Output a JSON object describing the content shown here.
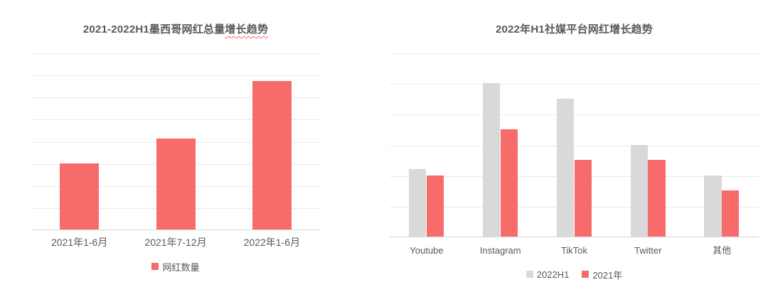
{
  "colors": {
    "red": "#F76B6B",
    "gray": "#D9D9D9",
    "text": "#595959",
    "gridline": "#E9E9E9",
    "axisline": "#D8D8D8",
    "background": "#FFFFFF"
  },
  "chart_data": [
    {
      "type": "bar",
      "title": "2021-2022H1墨西哥网红总量增长趋势",
      "title_wavy_underline_part": "增长趋势",
      "categories": [
        "2021年1-6月",
        "2021年7-12月",
        "2022年1-6月"
      ],
      "series": [
        {
          "name": "网红数量",
          "color_key": "red",
          "values": [
            3.0,
            4.1,
            6.7
          ]
        }
      ],
      "ylim": [
        0,
        8
      ],
      "gridline_intervals": 8,
      "yticks_visible": false,
      "grid": true,
      "legend_position": "bottom",
      "value_note": "values in gridline units; no y-axis tick labels shown"
    },
    {
      "type": "bar",
      "title": "2022年H1社媒平台网红增长趋势",
      "title_wavy_underline_part": "",
      "categories": [
        "Youtube",
        "Instagram",
        "TikTok",
        "Twitter",
        "其他"
      ],
      "series": [
        {
          "name": "2022H1",
          "color_key": "gray",
          "values": [
            2.2,
            5.0,
            4.5,
            3.0,
            2.0
          ]
        },
        {
          "name": "2021年",
          "color_key": "red",
          "values": [
            2.0,
            3.5,
            2.5,
            2.5,
            1.5
          ]
        }
      ],
      "ylim": [
        0,
        6
      ],
      "gridline_intervals": 6,
      "yticks_visible": false,
      "grid": true,
      "legend_position": "bottom",
      "value_note": "values in gridline units; no y-axis tick labels shown"
    }
  ]
}
